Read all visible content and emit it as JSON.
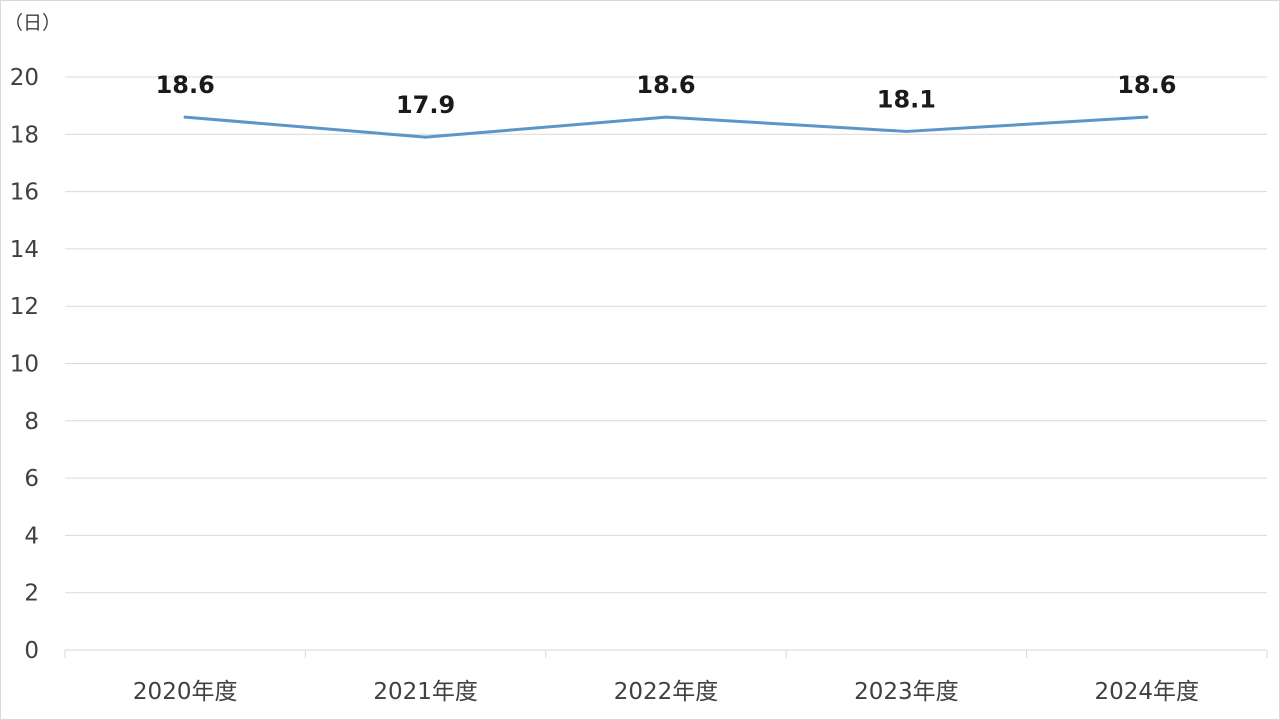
{
  "chart_data": {
    "type": "line",
    "ylabel": "（日）",
    "categories": [
      "2020年度",
      "2021年度",
      "2022年度",
      "2023年度",
      "2024年度"
    ],
    "series": [
      {
        "values": [
          18.6,
          17.9,
          18.6,
          18.1,
          18.6
        ],
        "color": "#5b96c7"
      }
    ],
    "data_labels": [
      "18.6",
      "17.9",
      "18.6",
      "18.1",
      "18.6"
    ],
    "yticks": [
      "0",
      "2",
      "4",
      "6",
      "8",
      "10",
      "12",
      "14",
      "16",
      "18",
      "20"
    ],
    "ylim": [
      0,
      20
    ],
    "grid": true,
    "legend": "none"
  }
}
